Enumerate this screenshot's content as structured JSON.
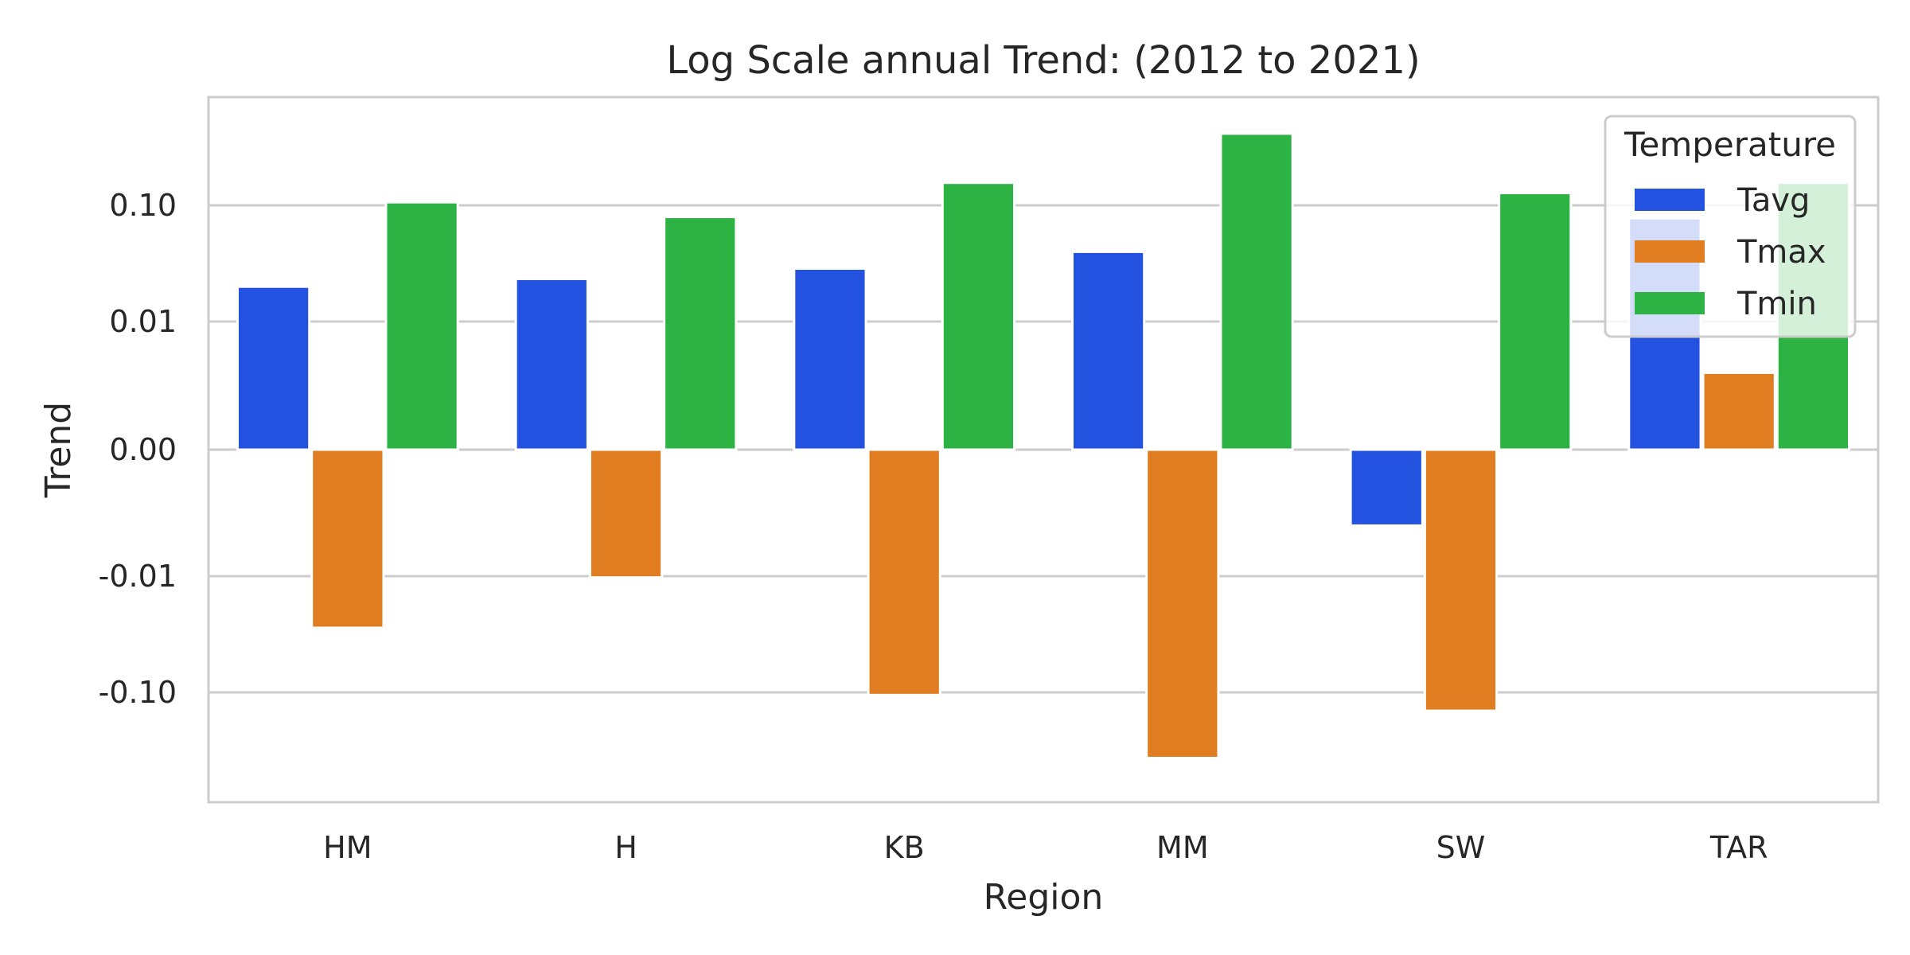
{
  "chart_data": {
    "type": "bar",
    "title": "Log Scale annual Trend: (2012 to 2021)",
    "xlabel": "Region",
    "ylabel": "Trend",
    "y_scale": "symlog",
    "categories": [
      "HM",
      "H",
      "KB",
      "MM",
      "SW",
      "TAR"
    ],
    "y_ticks": [
      {
        "value": 0.1,
        "label": "0.10"
      },
      {
        "value": 0.01,
        "label": "0.01"
      },
      {
        "value": 0.0,
        "label": "0.00"
      },
      {
        "value": -0.01,
        "label": "-0.01"
      },
      {
        "value": -0.1,
        "label": "-0.10"
      }
    ],
    "series": [
      {
        "name": "Tavg",
        "color": "#2351e0",
        "values": [
          0.037,
          0.043,
          0.051,
          0.064,
          -0.006,
          0.09
        ]
      },
      {
        "name": "Tmax",
        "color": "#e07d20",
        "values": [
          -0.05,
          -0.011,
          -0.11,
          -0.35,
          -0.17,
          0.006
        ]
      },
      {
        "name": "Tmin",
        "color": "#2db343",
        "values": [
          0.115,
          0.091,
          0.21,
          0.45,
          0.16,
          0.21
        ]
      }
    ],
    "grid": true,
    "legend": {
      "title": "Temperature",
      "position": "top-right"
    }
  }
}
